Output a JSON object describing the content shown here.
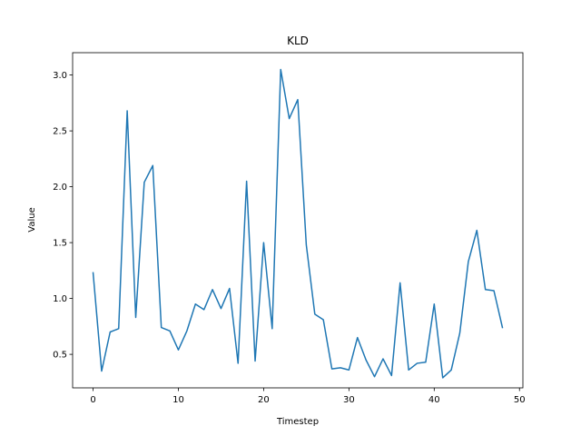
{
  "chart_data": {
    "type": "line",
    "title": "KLD",
    "xlabel": "Timestep",
    "ylabel": "Value",
    "xlim": [
      -2.4,
      50.4
    ],
    "ylim": [
      0.2,
      3.2
    ],
    "xticks": [
      0,
      10,
      20,
      30,
      40,
      50
    ],
    "yticks": [
      0.5,
      1.0,
      1.5,
      2.0,
      2.5,
      3.0
    ],
    "xtick_labels": [
      "0",
      "10",
      "20",
      "30",
      "40",
      "50"
    ],
    "ytick_labels": [
      "0.5",
      "1.0",
      "1.5",
      "2.0",
      "2.5",
      "3.0"
    ],
    "grid": false,
    "legend": "none",
    "series": [
      {
        "color": "#1f77b4",
        "x": [
          0,
          1,
          2,
          3,
          4,
          5,
          6,
          7,
          8,
          9,
          10,
          11,
          12,
          13,
          14,
          15,
          16,
          17,
          18,
          19,
          20,
          21,
          22,
          23,
          24,
          25,
          26,
          27,
          28,
          29,
          30,
          31,
          32,
          33,
          34,
          35,
          36,
          37,
          38,
          39,
          40,
          41,
          42,
          43,
          44,
          45,
          46,
          47,
          48
        ],
        "y": [
          1.23,
          0.35,
          0.7,
          0.73,
          2.68,
          0.83,
          2.04,
          2.19,
          0.74,
          0.71,
          0.54,
          0.71,
          0.95,
          0.9,
          1.08,
          0.91,
          1.09,
          0.42,
          2.05,
          0.44,
          1.5,
          0.73,
          3.05,
          2.61,
          2.78,
          1.48,
          0.86,
          0.81,
          0.37,
          0.38,
          0.36,
          0.65,
          0.45,
          0.3,
          0.46,
          0.31,
          1.14,
          0.36,
          0.42,
          0.43,
          0.95,
          0.29,
          0.36,
          0.69,
          1.33,
          1.61,
          1.08,
          1.07,
          0.74
        ]
      }
    ]
  }
}
